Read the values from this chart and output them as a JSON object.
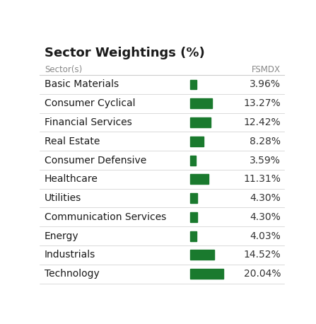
{
  "title": "Sector Weightings (%)",
  "col_header_left": "Sector(s)",
  "col_header_right": "FSMDX",
  "sectors": [
    "Basic Materials",
    "Consumer Cyclical",
    "Financial Services",
    "Real Estate",
    "Consumer Defensive",
    "Healthcare",
    "Utilities",
    "Communication Services",
    "Energy",
    "Industrials",
    "Technology"
  ],
  "values": [
    3.96,
    13.27,
    12.42,
    8.28,
    3.59,
    11.31,
    4.3,
    4.3,
    4.03,
    14.52,
    20.04
  ],
  "value_labels": [
    "3.96%",
    "13.27%",
    "12.42%",
    "8.28%",
    "3.59%",
    "11.31%",
    "4.30%",
    "4.30%",
    "4.03%",
    "14.52%",
    "20.04%"
  ],
  "bar_color": "#1a7a2e",
  "bar_max": 20.04,
  "title_color": "#1a1a1a",
  "header_color": "#888888",
  "sector_color": "#1a1a1a",
  "value_color": "#333333",
  "line_color": "#cccccc",
  "background_color": "#ffffff",
  "title_fontsize": 13,
  "header_fontsize": 8.5,
  "row_fontsize": 10,
  "value_fontsize": 10
}
